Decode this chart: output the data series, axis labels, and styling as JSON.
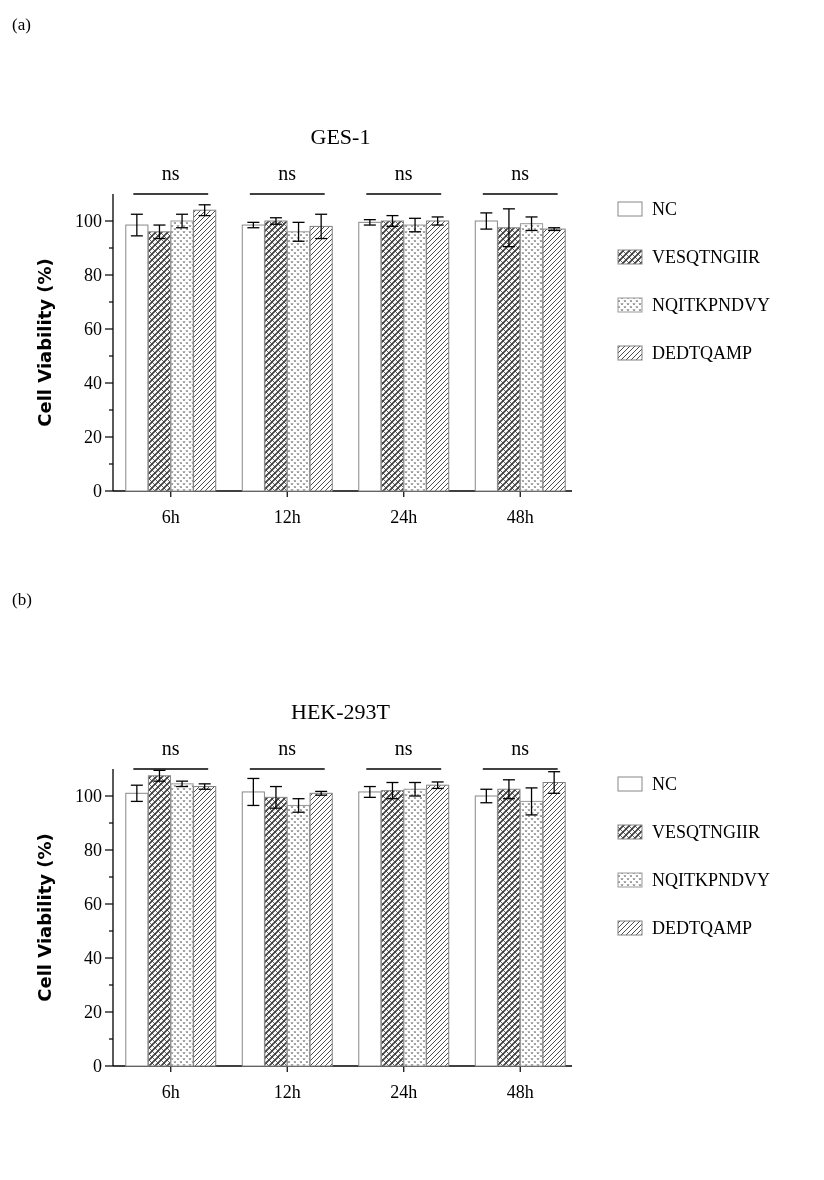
{
  "chart_data": [
    {
      "type": "bar",
      "title": "GES-1",
      "ylabel": "Cell Viability (%)",
      "categories": [
        "6h",
        "12h",
        "24h",
        "48h"
      ],
      "series": [
        {
          "name": "NC",
          "color": "#ffffff",
          "values": [
            98.5,
            98.5,
            99.5,
            100
          ],
          "errors": [
            4,
            1,
            1,
            3
          ]
        },
        {
          "name": "VESQTNGIIR",
          "color": "#888888",
          "values": [
            96,
            100,
            100,
            97.5
          ],
          "errors": [
            2.5,
            1.2,
            2,
            7
          ]
        },
        {
          "name": "NQITKPNDVY",
          "color": "#999999",
          "values": [
            100,
            96,
            98.5,
            99
          ],
          "errors": [
            2.5,
            3.5,
            2.5,
            2.5
          ]
        },
        {
          "name": "DEDTQAMP",
          "color": "#808080",
          "values": [
            104,
            98,
            100,
            97
          ],
          "errors": [
            2,
            4.5,
            1.5,
            0.5
          ]
        }
      ],
      "ylim": [
        0,
        110
      ],
      "yticks": [
        0,
        {
          "value": 10,
          "label": null
        },
        20,
        {
          "value": 30,
          "label": null
        },
        40,
        {
          "value": 50,
          "label": null
        },
        60,
        {
          "value": 70,
          "label": null
        },
        80,
        {
          "value": 90,
          "label": null
        },
        100
      ],
      "legend": "right",
      "grid": false,
      "annotations": [
        "(a)",
        "ns",
        "ns",
        "ns",
        "ns"
      ]
    },
    {
      "type": "bar",
      "title": "HEK-293T",
      "ylabel": "Cell Viability (%)",
      "categories": [
        "6h",
        "12h",
        "24h",
        "48h"
      ],
      "series": [
        {
          "name": "NC",
          "color": "#ffffff",
          "values": [
            101,
            101.5,
            101.5,
            100
          ],
          "errors": [
            3,
            5,
            2,
            2.5
          ]
        },
        {
          "name": "VESQTNGIIR",
          "color": "#888888",
          "values": [
            107.5,
            99.5,
            102,
            102.5
          ],
          "errors": [
            2,
            4,
            3,
            3.5
          ]
        },
        {
          "name": "NQITKPNDVY",
          "color": "#999999",
          "values": [
            104.5,
            96.5,
            102.5,
            98
          ],
          "errors": [
            1,
            2.5,
            2.5,
            5
          ]
        },
        {
          "name": "DEDTQAMP",
          "color": "#808080",
          "values": [
            103.5,
            101,
            104,
            105
          ],
          "errors": [
            1,
            0.7,
            1.2,
            4
          ]
        }
      ],
      "ylim": [
        0,
        110
      ],
      "yticks": [
        0,
        {
          "value": 10,
          "label": null
        },
        20,
        {
          "value": 30,
          "label": null
        },
        40,
        {
          "value": 50,
          "label": null
        },
        60,
        {
          "value": 70,
          "label": null
        },
        80,
        {
          "value": 90,
          "label": null
        },
        100
      ],
      "legend": "right",
      "grid": false,
      "annotations": [
        "(b)",
        "ns",
        "ns",
        "ns",
        "ns"
      ]
    }
  ]
}
